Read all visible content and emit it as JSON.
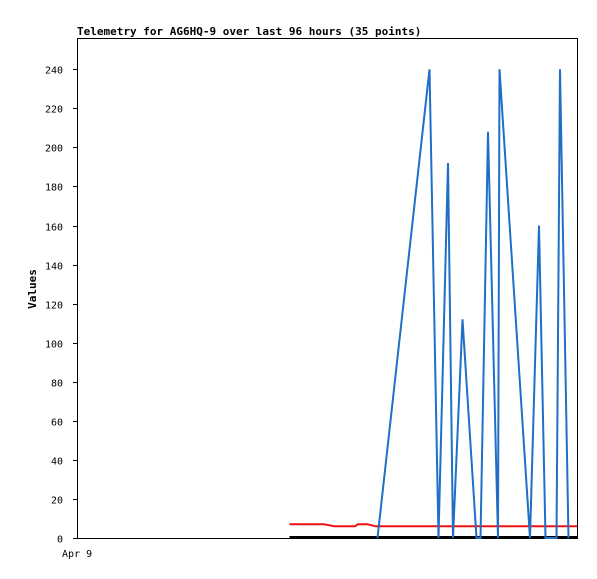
{
  "chart_data": {
    "type": "line",
    "title": "Telemetry for AG6HQ-9 over last 96 hours (35 points)",
    "xlabel": "",
    "ylabel": "Values",
    "x_tick_labels": [
      "Apr 9"
    ],
    "y_ticks": [
      0,
      20,
      40,
      60,
      80,
      100,
      120,
      140,
      160,
      180,
      200,
      220,
      240
    ],
    "ylim": [
      0,
      256
    ],
    "xlim": [
      0,
      1
    ],
    "grid": false,
    "legend": "none",
    "series": [
      {
        "name": "",
        "color": "#1f6ec8",
        "points": [
          [
            0.601,
            0
          ],
          [
            0.705,
            240
          ],
          [
            0.723,
            0
          ],
          [
            0.742,
            192
          ],
          [
            0.752,
            0
          ],
          [
            0.771,
            112
          ],
          [
            0.799,
            0
          ],
          [
            0.807,
            0
          ],
          [
            0.822,
            208
          ],
          [
            0.842,
            0
          ],
          [
            0.845,
            240
          ],
          [
            0.906,
            0
          ],
          [
            0.924,
            160
          ],
          [
            0.937,
            0
          ],
          [
            0.959,
            0
          ],
          [
            0.966,
            240
          ],
          [
            0.983,
            0
          ]
        ]
      },
      {
        "name": "",
        "color": "#ee1111",
        "points": [
          [
            0.425,
            7
          ],
          [
            0.494,
            7
          ],
          [
            0.515,
            6
          ],
          [
            0.556,
            6
          ],
          [
            0.562,
            7
          ],
          [
            0.581,
            7
          ],
          [
            0.597,
            6
          ],
          [
            0.65,
            6
          ],
          [
            0.7,
            6
          ],
          [
            0.8,
            6
          ],
          [
            0.9,
            6
          ],
          [
            1.0,
            6
          ]
        ]
      },
      {
        "name": "",
        "color": "#000000",
        "points": [
          [
            0.425,
            0.5
          ],
          [
            0.6,
            0.5
          ],
          [
            0.8,
            0.5
          ],
          [
            1.0,
            0.5
          ]
        ]
      }
    ]
  }
}
